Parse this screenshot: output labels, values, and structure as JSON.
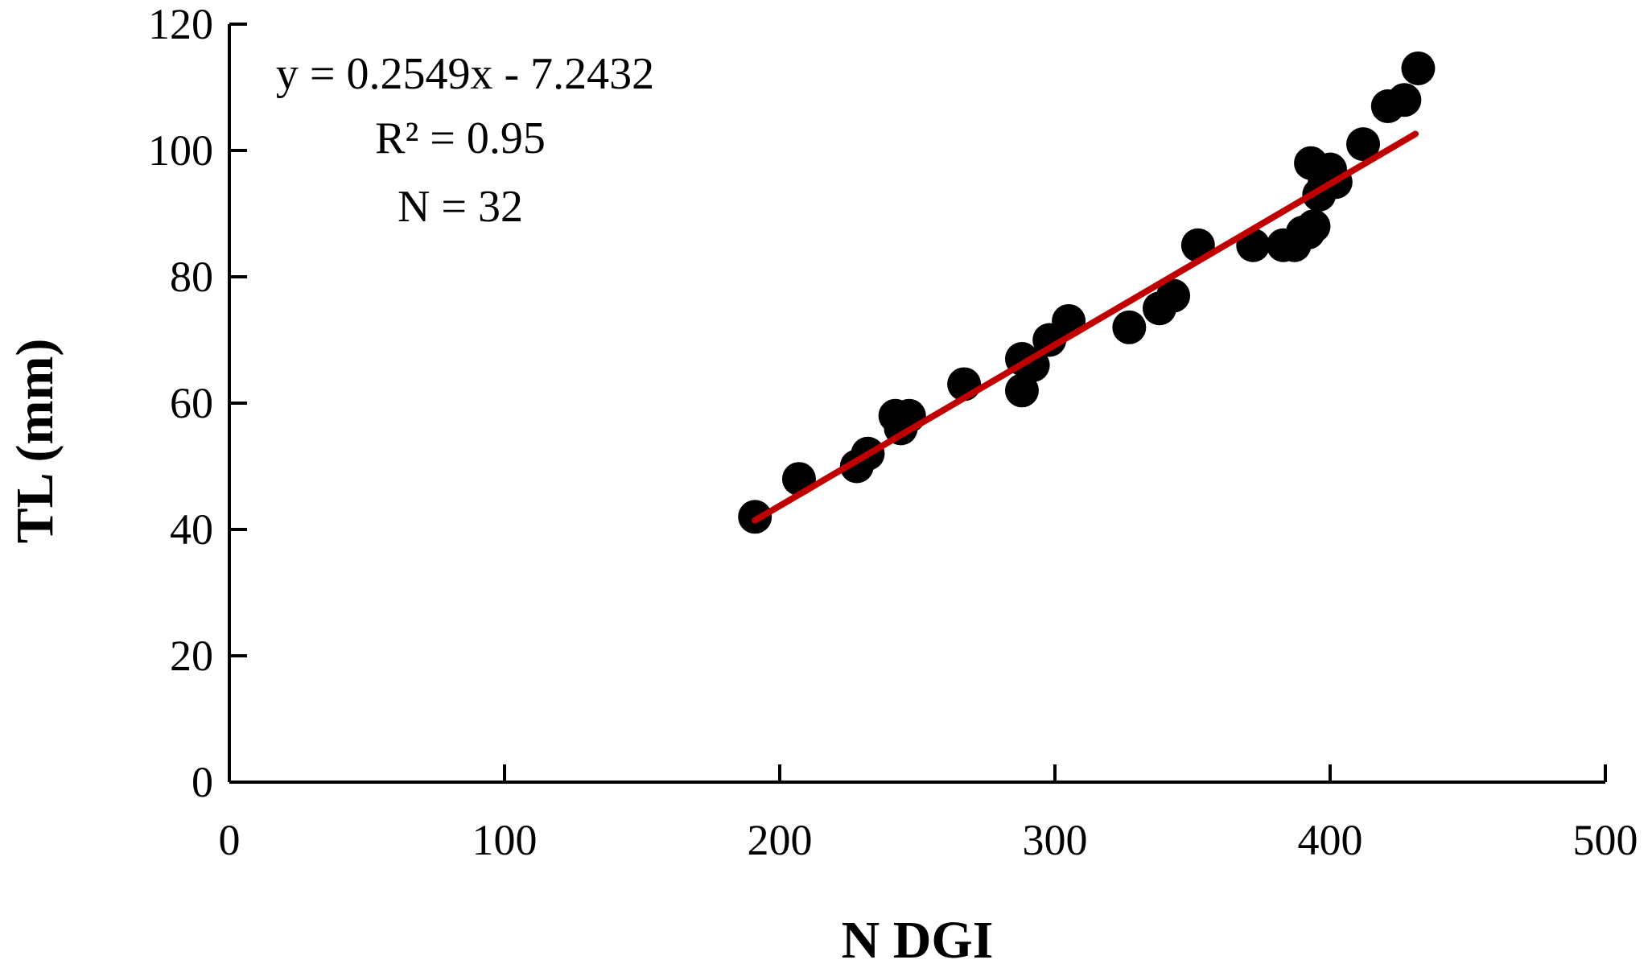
{
  "chart_data": {
    "type": "scatter",
    "xlabel": "N DGI",
    "ylabel": "TL (mm)",
    "xlim": [
      0,
      500
    ],
    "ylim": [
      0,
      120
    ],
    "xticks": [
      "0",
      "100",
      "200",
      "300",
      "400",
      "500"
    ],
    "yticks": [
      "0",
      "20",
      "40",
      "60",
      "80",
      "100",
      "120"
    ],
    "grid": false,
    "legend": "none",
    "colors": {
      "points": "#000000",
      "trendline": "#c00000",
      "axes": "#000000"
    },
    "annotations": [
      "y = 0.2549x - 7.2432",
      "R² = 0.95",
      "N = 32"
    ],
    "trendline": {
      "slope": 0.2549,
      "intercept": -7.2432,
      "x_range": [
        191,
        431
      ]
    },
    "series": [
      {
        "points": [
          [
            191,
            42
          ],
          [
            207,
            48
          ],
          [
            228,
            50
          ],
          [
            232,
            52
          ],
          [
            242,
            58
          ],
          [
            244,
            56
          ],
          [
            247,
            58
          ],
          [
            267,
            63
          ],
          [
            288,
            67
          ],
          [
            288,
            62
          ],
          [
            292,
            66
          ],
          [
            298,
            70
          ],
          [
            305,
            73
          ],
          [
            327,
            72
          ],
          [
            338,
            75
          ],
          [
            343,
            77
          ],
          [
            352,
            85
          ],
          [
            372,
            85
          ],
          [
            383,
            85
          ],
          [
            387,
            85
          ],
          [
            390,
            87
          ],
          [
            394,
            88
          ],
          [
            393,
            98
          ],
          [
            396,
            93
          ],
          [
            398,
            95
          ],
          [
            400,
            97
          ],
          [
            402,
            95
          ],
          [
            412,
            101
          ],
          [
            421,
            107
          ],
          [
            427,
            108
          ],
          [
            432,
            113
          ],
          [
            392,
            87
          ]
        ]
      }
    ]
  }
}
